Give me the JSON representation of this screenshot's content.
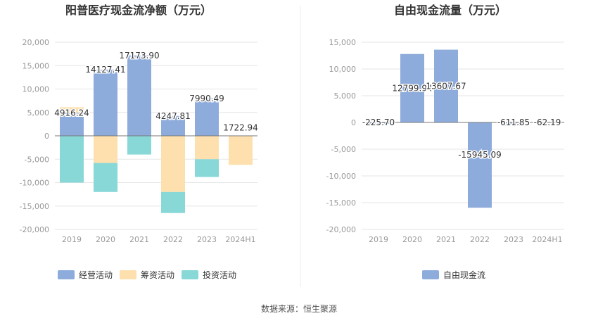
{
  "colors": {
    "operating": "#8eacdb",
    "financing": "#fde0ad",
    "investing": "#88d8d8",
    "grid": "#e6e6e6",
    "axis_text": "#999999",
    "title_text": "#333333",
    "divider": "#eeeeee"
  },
  "source_text": "数据来源：恒生聚源",
  "chart_data": [
    {
      "type": "bar",
      "stacked": true,
      "title": "阳普医疗现金流净额（万元）",
      "categories": [
        "2019",
        "2020",
        "2021",
        "2022",
        "2023",
        "2024H1"
      ],
      "ylim": [
        -20000,
        20000
      ],
      "yticks": [
        20000,
        15000,
        10000,
        5000,
        0,
        -5000,
        -10000,
        -15000,
        -20000
      ],
      "ytick_labels": [
        "20,000",
        "15,000",
        "10,000",
        "5,000",
        "0",
        "-5,000",
        "-10,000",
        "-15,000",
        "-20,000"
      ],
      "series": [
        {
          "name": "经营活动",
          "key": "operating",
          "values": [
            4916.24,
            14127.41,
            17173.9,
            4247.81,
            7990.49,
            0
          ],
          "labels": [
            "4916.24",
            "14127.41",
            "17173.90",
            "4247.81",
            "7990.49",
            ""
          ]
        },
        {
          "name": "筹资活动",
          "key": "financing",
          "values": [
            1200,
            -5800,
            0,
            -12000,
            -5000,
            -6200
          ]
        },
        {
          "name": "投资活动",
          "key": "investing",
          "values": [
            -10000,
            -6200,
            -4000,
            -4500,
            -3800,
            0
          ]
        }
      ],
      "extra_labels": [
        {
          "category": "2024H1",
          "value": 1722.94,
          "label": "1722.94"
        }
      ]
    },
    {
      "type": "bar",
      "title": "自由现金流量（万元）",
      "categories": [
        "2019",
        "2020",
        "2021",
        "2022",
        "2023",
        "2024H1"
      ],
      "ylim": [
        -20000,
        15000
      ],
      "yticks": [
        15000,
        10000,
        5000,
        0,
        -5000,
        -10000,
        -15000,
        -20000
      ],
      "ytick_labels": [
        "15,000",
        "10,000",
        "5,000",
        "0",
        "-5,000",
        "-10,000",
        "-15,000",
        "-20,000"
      ],
      "series": [
        {
          "name": "自由现金流",
          "key": "operating",
          "values": [
            -225.7,
            12799.94,
            13607.67,
            -15945.09,
            -611.85,
            -62.19
          ],
          "labels": [
            "-225.70",
            "12799.94",
            "13607.67",
            "-15945.09",
            "-611.85",
            "-62.19"
          ]
        }
      ]
    }
  ]
}
